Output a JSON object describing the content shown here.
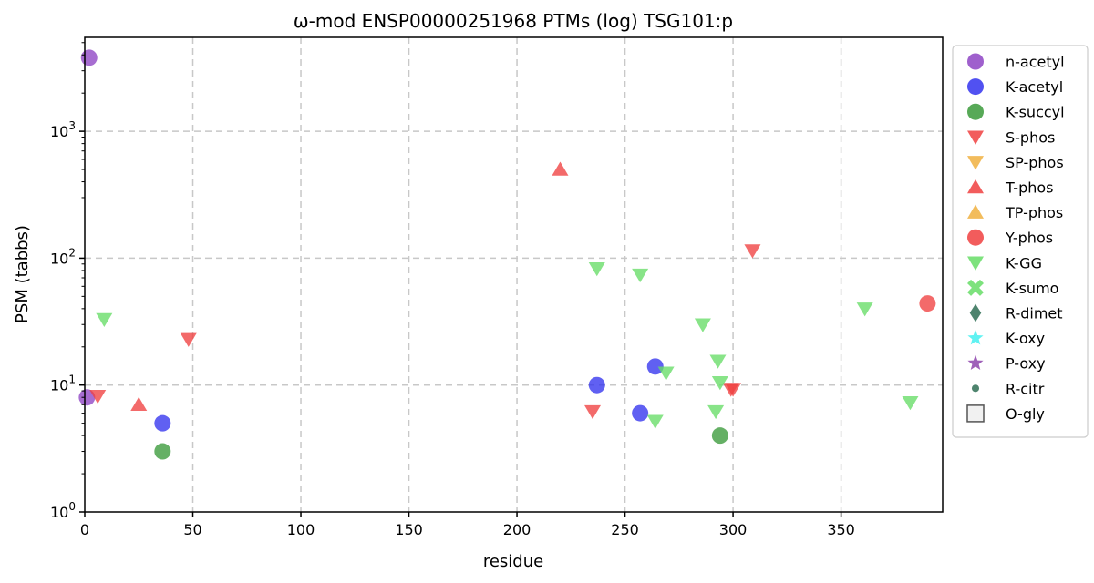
{
  "chart_data": {
    "type": "scatter",
    "title": "ω-mod ENSP00000251968 PTMs (log) TSG101:p",
    "xlabel": "residue",
    "ylabel": "PSM (tabbs)",
    "xlim": [
      0,
      397
    ],
    "ylim": [
      1,
      5500
    ],
    "yscale": "log",
    "grid": true,
    "legend_position": "outside-right",
    "x_ticks": [
      0,
      50,
      100,
      150,
      200,
      250,
      300,
      350
    ],
    "y_ticks": [
      {
        "value": 1,
        "base": "10",
        "exp": "0"
      },
      {
        "value": 10,
        "base": "10",
        "exp": "1"
      },
      {
        "value": 100,
        "base": "10",
        "exp": "2"
      },
      {
        "value": 1000,
        "base": "10",
        "exp": "3"
      }
    ],
    "series": [
      {
        "name": "n-acetyl",
        "marker": "circle",
        "color": "#8e44c4",
        "points": [
          {
            "x": 2,
            "y": 3800
          },
          {
            "x": 1,
            "y": 8
          }
        ]
      },
      {
        "name": "K-acetyl",
        "marker": "circle",
        "color": "#3333ee",
        "points": [
          {
            "x": 36,
            "y": 5
          },
          {
            "x": 237,
            "y": 10
          },
          {
            "x": 257,
            "y": 6
          },
          {
            "x": 264,
            "y": 14
          }
        ]
      },
      {
        "name": "K-succyl",
        "marker": "circle",
        "color": "#3a9a3a",
        "points": [
          {
            "x": 36,
            "y": 3
          },
          {
            "x": 294,
            "y": 4
          }
        ]
      },
      {
        "name": "S-phos",
        "marker": "triangle-down",
        "color": "#f04040",
        "points": [
          {
            "x": 6,
            "y": 8.2
          },
          {
            "x": 48,
            "y": 23
          },
          {
            "x": 235,
            "y": 6.2
          },
          {
            "x": 299,
            "y": 9.3
          },
          {
            "x": 300,
            "y": 9.3
          },
          {
            "x": 309,
            "y": 115
          }
        ]
      },
      {
        "name": "SP-phos",
        "marker": "triangle-down",
        "color": "#f0b040",
        "points": []
      },
      {
        "name": "T-phos",
        "marker": "triangle-up",
        "color": "#f04040",
        "points": [
          {
            "x": 25,
            "y": 7
          },
          {
            "x": 220,
            "y": 500
          }
        ]
      },
      {
        "name": "TP-phos",
        "marker": "triangle-up",
        "color": "#f0b040",
        "points": []
      },
      {
        "name": "Y-phos",
        "marker": "circle",
        "color": "#f04040",
        "points": [
          {
            "x": 390,
            "y": 44
          }
        ]
      },
      {
        "name": "K-GG",
        "marker": "triangle-down",
        "color": "#66dd66",
        "points": [
          {
            "x": 9,
            "y": 33
          },
          {
            "x": 237,
            "y": 83
          },
          {
            "x": 257,
            "y": 74
          },
          {
            "x": 264,
            "y": 5.2
          },
          {
            "x": 269,
            "y": 12.5
          },
          {
            "x": 286,
            "y": 30
          },
          {
            "x": 292,
            "y": 6.2
          },
          {
            "x": 293,
            "y": 15.5
          },
          {
            "x": 294,
            "y": 10.5
          },
          {
            "x": 361,
            "y": 40
          },
          {
            "x": 382,
            "y": 7.3
          }
        ]
      },
      {
        "name": "K-sumo",
        "marker": "x",
        "color": "#66dd66",
        "points": []
      },
      {
        "name": "R-dimet",
        "marker": "diamond",
        "color": "#2f6f55",
        "points": []
      },
      {
        "name": "K-oxy",
        "marker": "star",
        "color": "#44f0f0",
        "points": []
      },
      {
        "name": "P-oxy",
        "marker": "star",
        "color": "#8e44ad",
        "points": []
      },
      {
        "name": "R-citr",
        "marker": "dot",
        "color": "#2f6f55",
        "points": []
      },
      {
        "name": "O-gly",
        "marker": "square-open",
        "color": "#555555",
        "points": []
      }
    ]
  }
}
